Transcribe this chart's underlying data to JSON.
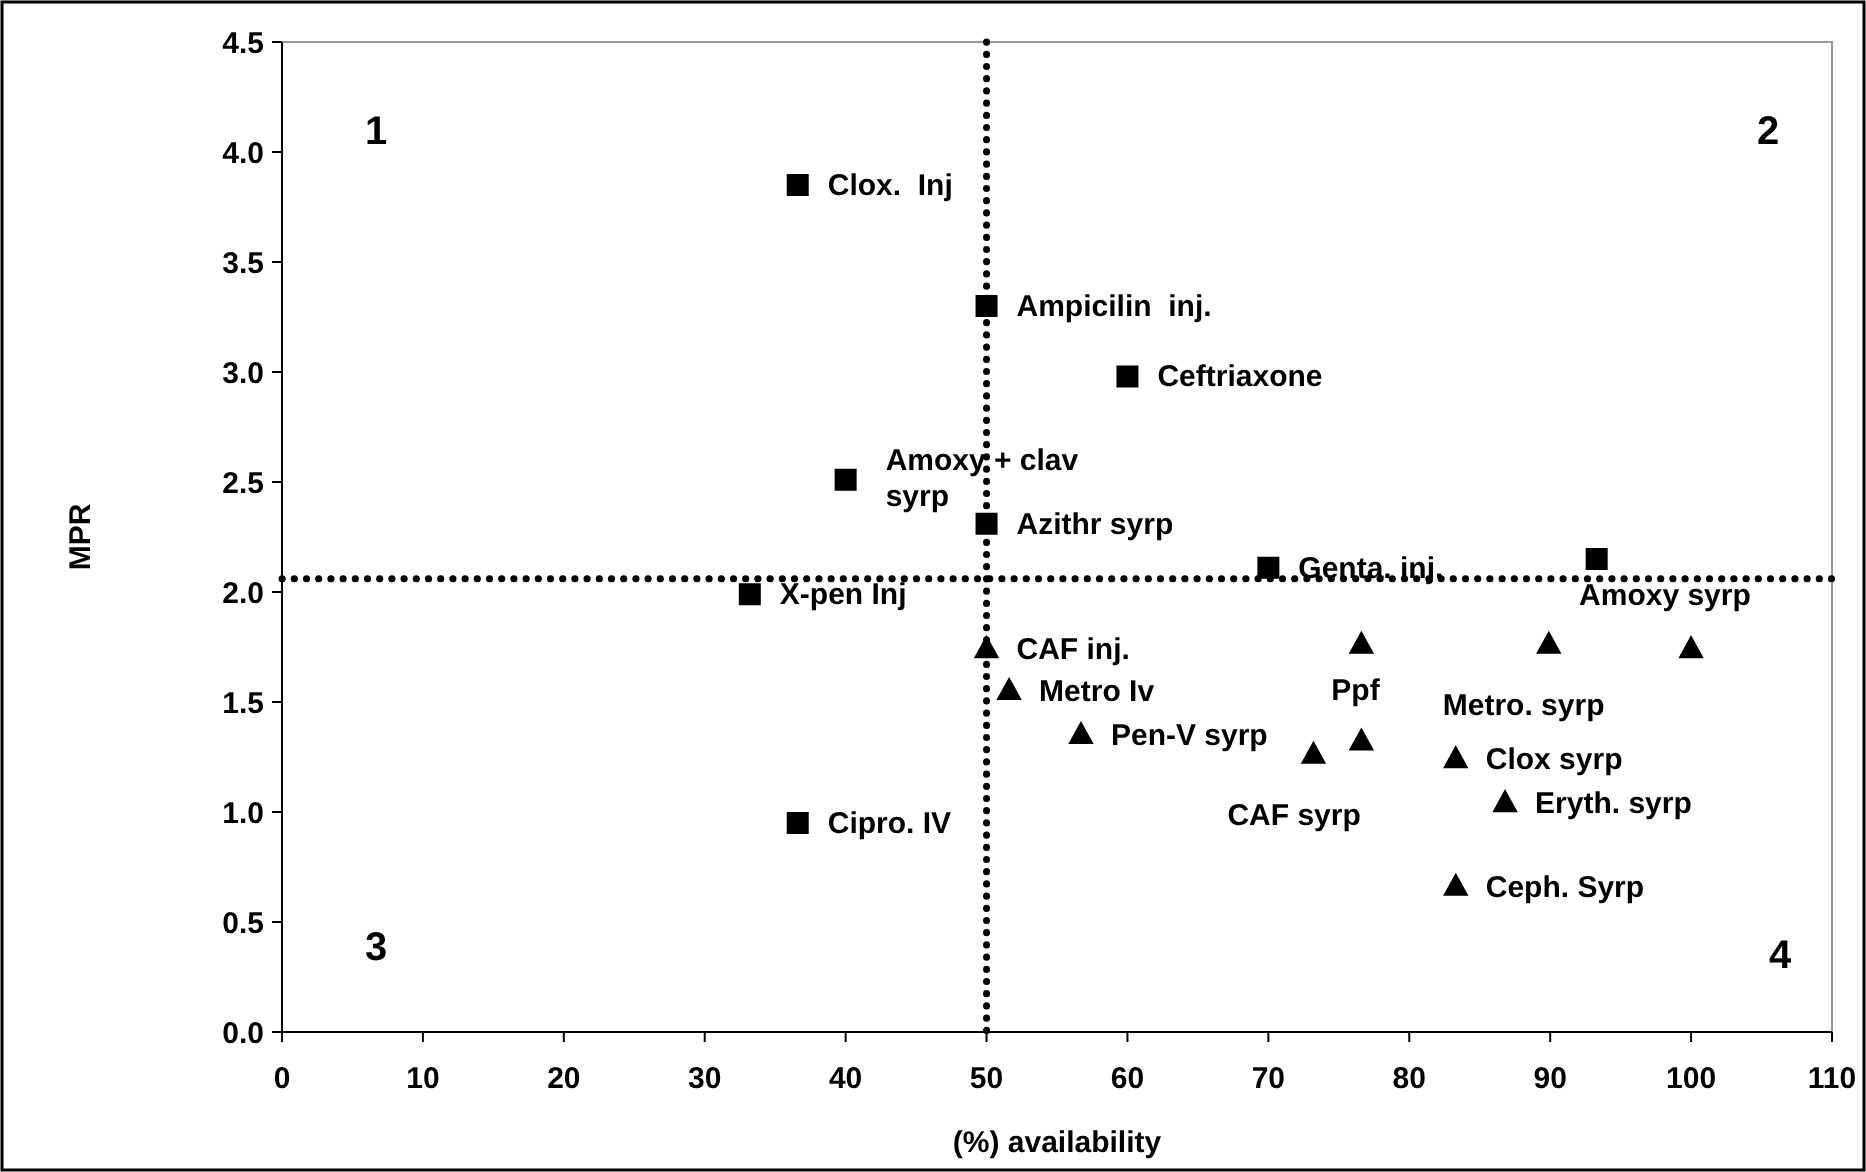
{
  "chart_data": {
    "type": "scatter",
    "xlabel": "(%) availability",
    "ylabel": "MPR",
    "xlim": [
      0,
      110
    ],
    "xticks": [
      0,
      10,
      20,
      30,
      40,
      50,
      60,
      70,
      80,
      90,
      100,
      110
    ],
    "ylim": [
      0,
      4.5
    ],
    "yticks": [
      {
        "value": 0,
        "label": "0.0"
      },
      {
        "value": 0.5,
        "label": "0.5"
      },
      {
        "value": 1,
        "label": "1.0"
      },
      {
        "value": 1.5,
        "label": "1.5"
      },
      {
        "value": 2,
        "label": "2.0"
      },
      {
        "value": 2.5,
        "label": "2.5"
      },
      {
        "value": 3,
        "label": "3.0"
      },
      {
        "value": 3.5,
        "label": "3.5"
      },
      {
        "value": 4,
        "label": "4.0"
      },
      {
        "value": 4.5,
        "label": "4.5"
      }
    ],
    "grid": false,
    "series": [
      {
        "color": "#000000",
        "marker": "square",
        "x": [
          36.6,
          50,
          60,
          40,
          50,
          70,
          93.3,
          33.2,
          36.6
        ],
        "values": [
          3.85,
          3.3,
          2.98,
          2.51,
          2.31,
          2.11,
          2.15,
          1.99,
          0.95
        ],
        "value_labels": [
          "Clox.  Inj",
          "Ampicilin  inj.",
          "Ceftriaxone",
          "Amoxy + clav syrp",
          "Azithr syrp",
          "Genta. inj.",
          null,
          "X-pen Inj",
          "Cipro. IV"
        ]
      },
      {
        "color": "#000000",
        "marker": "triangle",
        "x": [
          50,
          51.6,
          56.7,
          73.2,
          76.6,
          76.6,
          89.9,
          100,
          83.3,
          86.8,
          83.3
        ],
        "values": [
          1.74,
          1.55,
          1.35,
          1.26,
          1.32,
          1.76,
          1.76,
          1.74,
          1.24,
          1.04,
          0.66
        ],
        "value_labels": [
          "CAF inj.",
          "Metro Iv",
          "Pen-V syrp",
          "CAF syrp",
          "Ppf",
          null,
          "Metro. syrp",
          "Amoxy syrp",
          "Clox syrp",
          "Eryth. syrp",
          "Ceph. Syrp"
        ]
      }
    ],
    "ref_lines": [
      {
        "axis": "x",
        "value": 50,
        "line_style": "dotted",
        "color": "#000000"
      },
      {
        "axis": "y",
        "value": 2.06,
        "line_style": "dotted",
        "color": "#000000"
      }
    ],
    "annotations": [
      "1",
      "2",
      "3",
      "4"
    ]
  }
}
